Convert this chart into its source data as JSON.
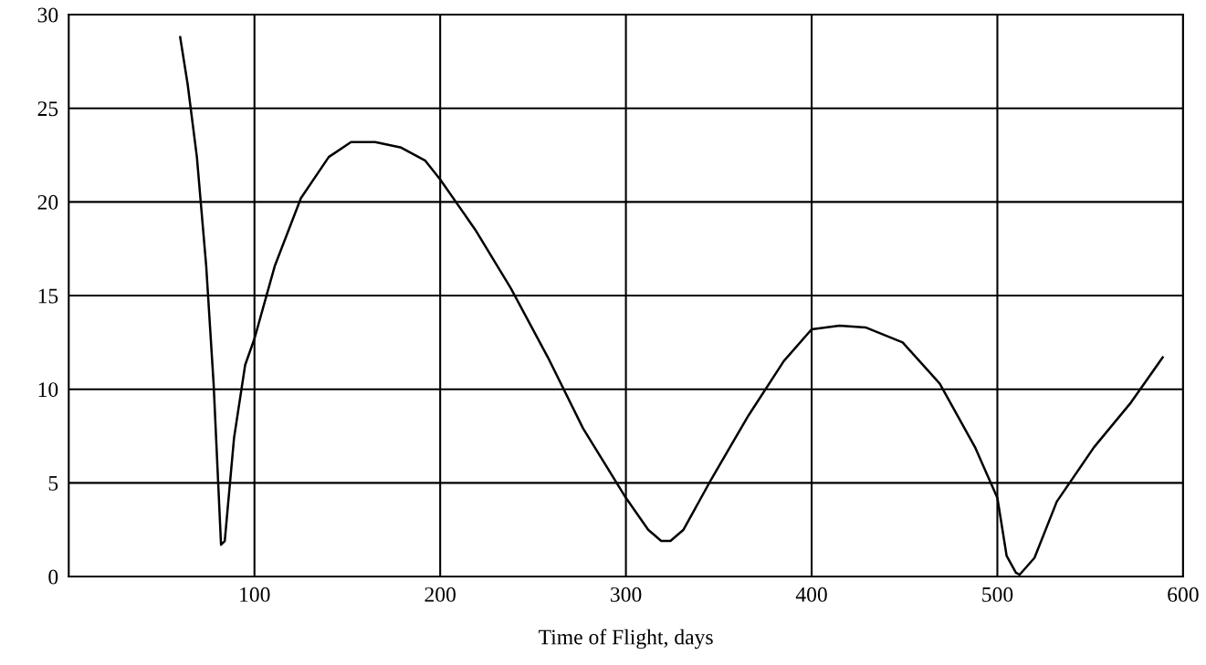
{
  "chart_data": {
    "type": "line",
    "xlabel": "Time of Flight, days",
    "x": [
      60,
      64,
      69,
      74,
      78,
      82,
      84,
      89,
      95,
      100,
      111,
      125,
      140,
      152,
      165,
      179,
      192,
      200,
      219,
      238,
      258,
      277,
      300,
      312,
      319,
      324,
      331,
      346,
      366,
      385,
      400,
      415,
      429,
      449,
      469,
      488,
      500,
      505,
      510,
      512,
      520,
      532,
      552,
      572,
      589
    ],
    "series": [
      {
        "color": "#000000",
        "values": [
          28.8,
          26.3,
          22.4,
          16.6,
          10.3,
          1.7,
          1.9,
          7.4,
          11.3,
          12.7,
          16.6,
          20.2,
          22.4,
          23.2,
          23.2,
          22.9,
          22.2,
          21.2,
          18.5,
          15.4,
          11.7,
          7.9,
          4.2,
          2.5,
          1.9,
          1.9,
          2.5,
          5.2,
          8.6,
          11.5,
          13.2,
          13.4,
          13.3,
          12.5,
          10.3,
          6.9,
          4.2,
          1.1,
          0.2,
          0.1,
          1.0,
          4.0,
          6.9,
          9.3,
          11.7
        ]
      }
    ],
    "xlim": [
      0,
      600
    ],
    "xticks": [
      100,
      200,
      300,
      400,
      500,
      600
    ],
    "ylim": [
      0,
      30
    ],
    "yticks": [
      0,
      5,
      10,
      15,
      20,
      25,
      30
    ],
    "grid": true,
    "marker": "none",
    "line_style": "solid"
  }
}
